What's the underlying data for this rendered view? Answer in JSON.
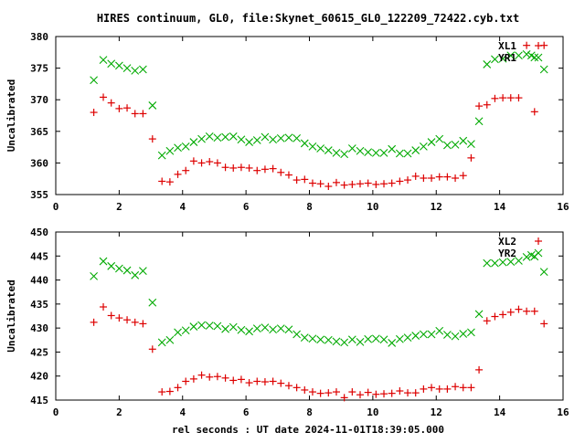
{
  "title": "HIRES continuum, GL0, file:Skynet_60615_GL0_122209_72422.cyb.txt",
  "xlabel": "rel seconds : UT date 2024-11-01T18:39:05.000",
  "colors": {
    "red": "#dd0000",
    "green": "#00aa00",
    "axis": "#000000"
  },
  "chart_data": [
    {
      "type": "scatter",
      "ylabel": "Uncalibrated",
      "xlim": [
        0,
        16
      ],
      "ylim": [
        355,
        380
      ],
      "xticks": [
        0,
        2,
        4,
        6,
        8,
        10,
        12,
        14,
        16
      ],
      "yticks": [
        355,
        360,
        365,
        370,
        375,
        380
      ],
      "grid": false,
      "legend_position": "top-right",
      "series": [
        {
          "name": "XL1",
          "marker": "+",
          "color": "#dd0000",
          "x": [
            1.2,
            1.5,
            1.75,
            2.0,
            2.25,
            2.5,
            2.75,
            3.05,
            3.35,
            3.6,
            3.85,
            4.1,
            4.35,
            4.6,
            4.85,
            5.1,
            5.35,
            5.6,
            5.85,
            6.1,
            6.35,
            6.6,
            6.85,
            7.1,
            7.35,
            7.6,
            7.85,
            8.1,
            8.35,
            8.6,
            8.85,
            9.1,
            9.35,
            9.6,
            9.85,
            10.1,
            10.35,
            10.6,
            10.85,
            11.1,
            11.35,
            11.6,
            11.85,
            12.1,
            12.35,
            12.6,
            12.85,
            13.1,
            13.35,
            13.6,
            13.85,
            14.1,
            14.35,
            14.6,
            14.85,
            15.1,
            15.4
          ],
          "y": [
            368.0,
            370.4,
            369.5,
            368.6,
            368.7,
            367.8,
            367.8,
            363.8,
            357.1,
            357.0,
            358.2,
            358.8,
            360.3,
            360.0,
            360.2,
            360.0,
            359.3,
            359.2,
            359.3,
            359.2,
            358.8,
            359.0,
            359.1,
            358.5,
            358.1,
            357.3,
            357.4,
            356.8,
            356.7,
            356.3,
            356.9,
            356.5,
            356.6,
            356.7,
            356.8,
            356.6,
            356.7,
            356.8,
            357.1,
            357.3,
            357.9,
            357.6,
            357.6,
            357.8,
            357.8,
            357.6,
            358.0,
            360.8,
            369.0,
            369.2,
            370.2,
            370.3,
            370.3,
            370.3,
            378.6,
            368.1,
            378.6
          ]
        },
        {
          "name": "YR1",
          "marker": "x",
          "color": "#00aa00",
          "x": [
            1.2,
            1.5,
            1.75,
            2.0,
            2.25,
            2.5,
            2.75,
            3.05,
            3.35,
            3.6,
            3.85,
            4.1,
            4.35,
            4.6,
            4.85,
            5.1,
            5.35,
            5.6,
            5.85,
            6.1,
            6.35,
            6.6,
            6.85,
            7.1,
            7.35,
            7.6,
            7.85,
            8.1,
            8.35,
            8.6,
            8.85,
            9.1,
            9.35,
            9.6,
            9.85,
            10.1,
            10.35,
            10.6,
            10.85,
            11.1,
            11.35,
            11.6,
            11.85,
            12.1,
            12.35,
            12.6,
            12.85,
            13.1,
            13.35,
            13.6,
            13.85,
            14.1,
            14.35,
            14.6,
            14.85,
            15.0,
            15.1,
            15.4
          ],
          "y": [
            373.1,
            376.3,
            375.7,
            375.4,
            375.0,
            374.6,
            374.8,
            369.1,
            361.2,
            361.9,
            362.4,
            362.6,
            363.3,
            363.8,
            364.2,
            364.0,
            364.1,
            364.2,
            363.7,
            363.3,
            363.6,
            364.1,
            363.7,
            363.9,
            364.0,
            363.9,
            363.1,
            362.6,
            362.3,
            362.0,
            361.6,
            361.4,
            362.3,
            361.9,
            361.7,
            361.6,
            361.6,
            362.2,
            361.5,
            361.5,
            362.0,
            362.6,
            363.3,
            363.8,
            362.8,
            362.9,
            363.5,
            363.0,
            366.6,
            375.6,
            376.4,
            376.5,
            377.0,
            377.0,
            377.2,
            377.0,
            376.7,
            374.8
          ]
        }
      ]
    },
    {
      "type": "scatter",
      "ylabel": "Uncalibrated",
      "xlim": [
        0,
        16
      ],
      "ylim": [
        415,
        450
      ],
      "xticks": [
        0,
        2,
        4,
        6,
        8,
        10,
        12,
        14,
        16
      ],
      "yticks": [
        415,
        420,
        425,
        430,
        435,
        440,
        445,
        450
      ],
      "grid": false,
      "legend_position": "top-right",
      "series": [
        {
          "name": "XL2",
          "marker": "+",
          "color": "#dd0000",
          "x": [
            1.2,
            1.5,
            1.75,
            2.0,
            2.25,
            2.5,
            2.75,
            3.05,
            3.35,
            3.6,
            3.85,
            4.1,
            4.35,
            4.6,
            4.85,
            5.1,
            5.35,
            5.6,
            5.85,
            6.1,
            6.35,
            6.6,
            6.85,
            7.1,
            7.35,
            7.6,
            7.85,
            8.1,
            8.35,
            8.6,
            8.85,
            9.1,
            9.35,
            9.6,
            9.85,
            10.1,
            10.35,
            10.6,
            10.85,
            11.1,
            11.35,
            11.6,
            11.85,
            12.1,
            12.35,
            12.6,
            12.85,
            13.1,
            13.35,
            13.6,
            13.85,
            14.1,
            14.35,
            14.6,
            14.85,
            15.1,
            15.4
          ],
          "y": [
            431.2,
            434.4,
            432.6,
            432.1,
            431.7,
            431.2,
            430.9,
            425.6,
            416.7,
            416.8,
            417.6,
            418.9,
            419.4,
            420.2,
            419.8,
            419.9,
            419.6,
            419.1,
            419.3,
            418.6,
            418.9,
            418.8,
            418.9,
            418.5,
            418.0,
            417.6,
            417.1,
            416.7,
            416.4,
            416.5,
            416.7,
            415.5,
            416.7,
            416.1,
            416.6,
            416.2,
            416.3,
            416.4,
            416.9,
            416.5,
            416.5,
            417.3,
            417.6,
            417.3,
            417.3,
            417.8,
            417.6,
            417.6,
            421.3,
            431.5,
            432.4,
            432.8,
            433.3,
            433.9,
            433.5,
            433.5,
            430.9
          ]
        },
        {
          "name": "YR2",
          "marker": "x",
          "color": "#00aa00",
          "x": [
            1.2,
            1.5,
            1.75,
            2.0,
            2.25,
            2.5,
            2.75,
            3.05,
            3.35,
            3.6,
            3.85,
            4.1,
            4.35,
            4.6,
            4.85,
            5.1,
            5.35,
            5.6,
            5.85,
            6.1,
            6.35,
            6.6,
            6.85,
            7.1,
            7.35,
            7.6,
            7.85,
            8.1,
            8.35,
            8.6,
            8.85,
            9.1,
            9.35,
            9.6,
            9.85,
            10.1,
            10.35,
            10.6,
            10.85,
            11.1,
            11.35,
            11.6,
            11.85,
            12.1,
            12.35,
            12.6,
            12.85,
            13.1,
            13.35,
            13.6,
            13.85,
            14.1,
            14.35,
            14.6,
            14.85,
            15.0,
            15.1,
            15.4
          ],
          "y": [
            440.8,
            443.9,
            442.9,
            442.4,
            442.0,
            441.0,
            441.9,
            435.3,
            427.0,
            427.5,
            429.1,
            429.5,
            430.3,
            430.6,
            430.5,
            430.4,
            429.8,
            430.2,
            429.6,
            429.3,
            429.9,
            430.1,
            429.7,
            429.9,
            429.7,
            428.7,
            428.0,
            427.8,
            427.6,
            427.5,
            427.2,
            427.0,
            427.6,
            427.1,
            427.7,
            427.8,
            427.6,
            426.9,
            427.7,
            428.0,
            428.4,
            428.7,
            428.7,
            429.4,
            428.6,
            428.3,
            428.8,
            429.1,
            432.9,
            443.5,
            443.5,
            443.7,
            443.8,
            444.0,
            444.8,
            445.2,
            444.9,
            441.7
          ]
        }
      ]
    }
  ]
}
